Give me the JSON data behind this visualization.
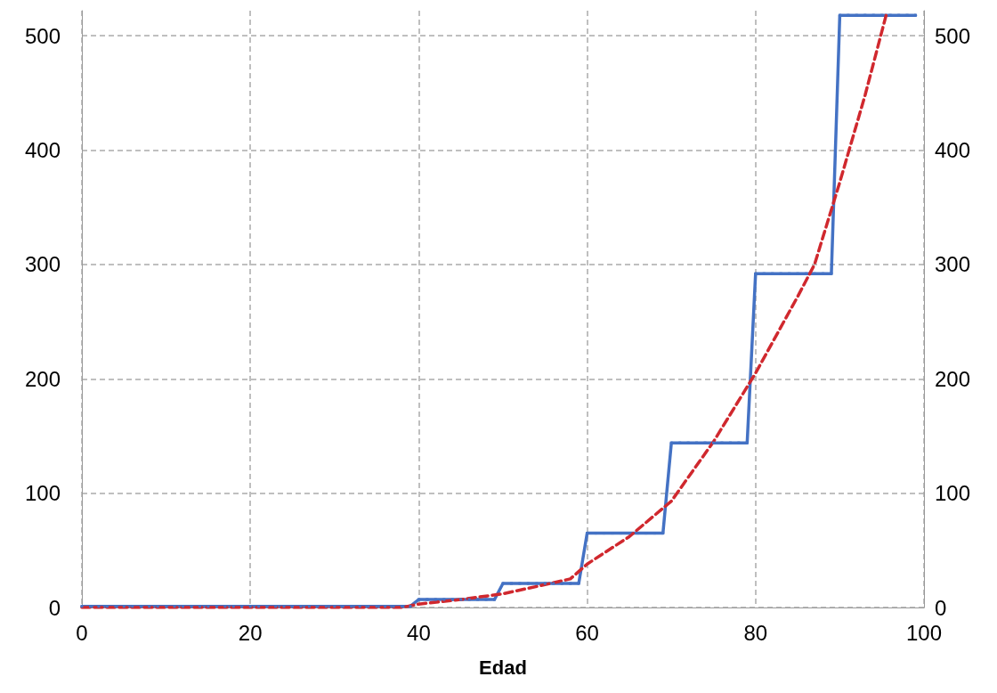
{
  "chart_data": {
    "type": "line",
    "xlabel": "Edad",
    "xlim": [
      0,
      100
    ],
    "xticks": [
      0,
      20,
      40,
      60,
      80,
      100
    ],
    "ylim": [
      0,
      522
    ],
    "yticks": [
      0,
      100,
      200,
      300,
      400,
      500
    ],
    "y2lim": [
      0,
      522
    ],
    "y2ticks": [
      0,
      100,
      200,
      300,
      400,
      500
    ],
    "grid": true,
    "series": [
      {
        "color": "#4472c4",
        "marker": "square",
        "line_style": "solid",
        "x": [
          0,
          1,
          2,
          3,
          4,
          5,
          6,
          7,
          8,
          9,
          10,
          11,
          12,
          13,
          14,
          15,
          16,
          17,
          18,
          19,
          20,
          21,
          22,
          23,
          24,
          25,
          26,
          27,
          28,
          29,
          30,
          31,
          32,
          33,
          34,
          35,
          36,
          37,
          38,
          39,
          40,
          41,
          42,
          43,
          44,
          45,
          46,
          47,
          48,
          49,
          50,
          51,
          52,
          53,
          54,
          55,
          56,
          57,
          58,
          59,
          60,
          61,
          62,
          63,
          64,
          65,
          66,
          67,
          68,
          69,
          70,
          71,
          72,
          73,
          74,
          75,
          76,
          77,
          78,
          79,
          80,
          81,
          82,
          83,
          84,
          85,
          86,
          87,
          88,
          89,
          90,
          91,
          92,
          93,
          94,
          95,
          96,
          97,
          98,
          99
        ],
        "values": [
          1,
          1,
          1,
          1,
          1,
          1,
          1,
          1,
          1,
          1,
          1,
          1,
          1,
          1,
          1,
          1,
          1,
          1,
          1,
          1,
          1,
          1,
          1,
          1,
          1,
          1,
          1,
          1,
          1,
          1,
          1,
          1,
          1,
          1,
          1,
          1,
          1,
          1,
          1,
          1,
          7,
          7,
          7,
          7,
          7,
          7,
          7,
          7,
          7,
          7,
          21,
          21,
          21,
          21,
          21,
          21,
          21,
          21,
          21,
          21,
          65,
          65,
          65,
          65,
          65,
          65,
          65,
          65,
          65,
          65,
          144,
          144,
          144,
          144,
          144,
          144,
          144,
          144,
          144,
          144,
          292,
          292,
          292,
          292,
          292,
          292,
          292,
          292,
          292,
          292,
          518,
          518,
          518,
          518,
          518,
          518,
          518,
          518,
          518,
          518
        ]
      },
      {
        "color": "#d0282e",
        "marker": "none",
        "line_style": "dashed",
        "x": [
          0,
          10,
          20,
          30,
          38,
          40,
          45,
          50,
          55,
          58,
          60,
          65,
          70,
          75,
          80,
          85,
          87,
          90,
          93,
          95.5
        ],
        "values": [
          0,
          0,
          0,
          0,
          0,
          3,
          7,
          12,
          20,
          25,
          38,
          62,
          93,
          145,
          205,
          272,
          300,
          372,
          448,
          518
        ]
      }
    ]
  }
}
